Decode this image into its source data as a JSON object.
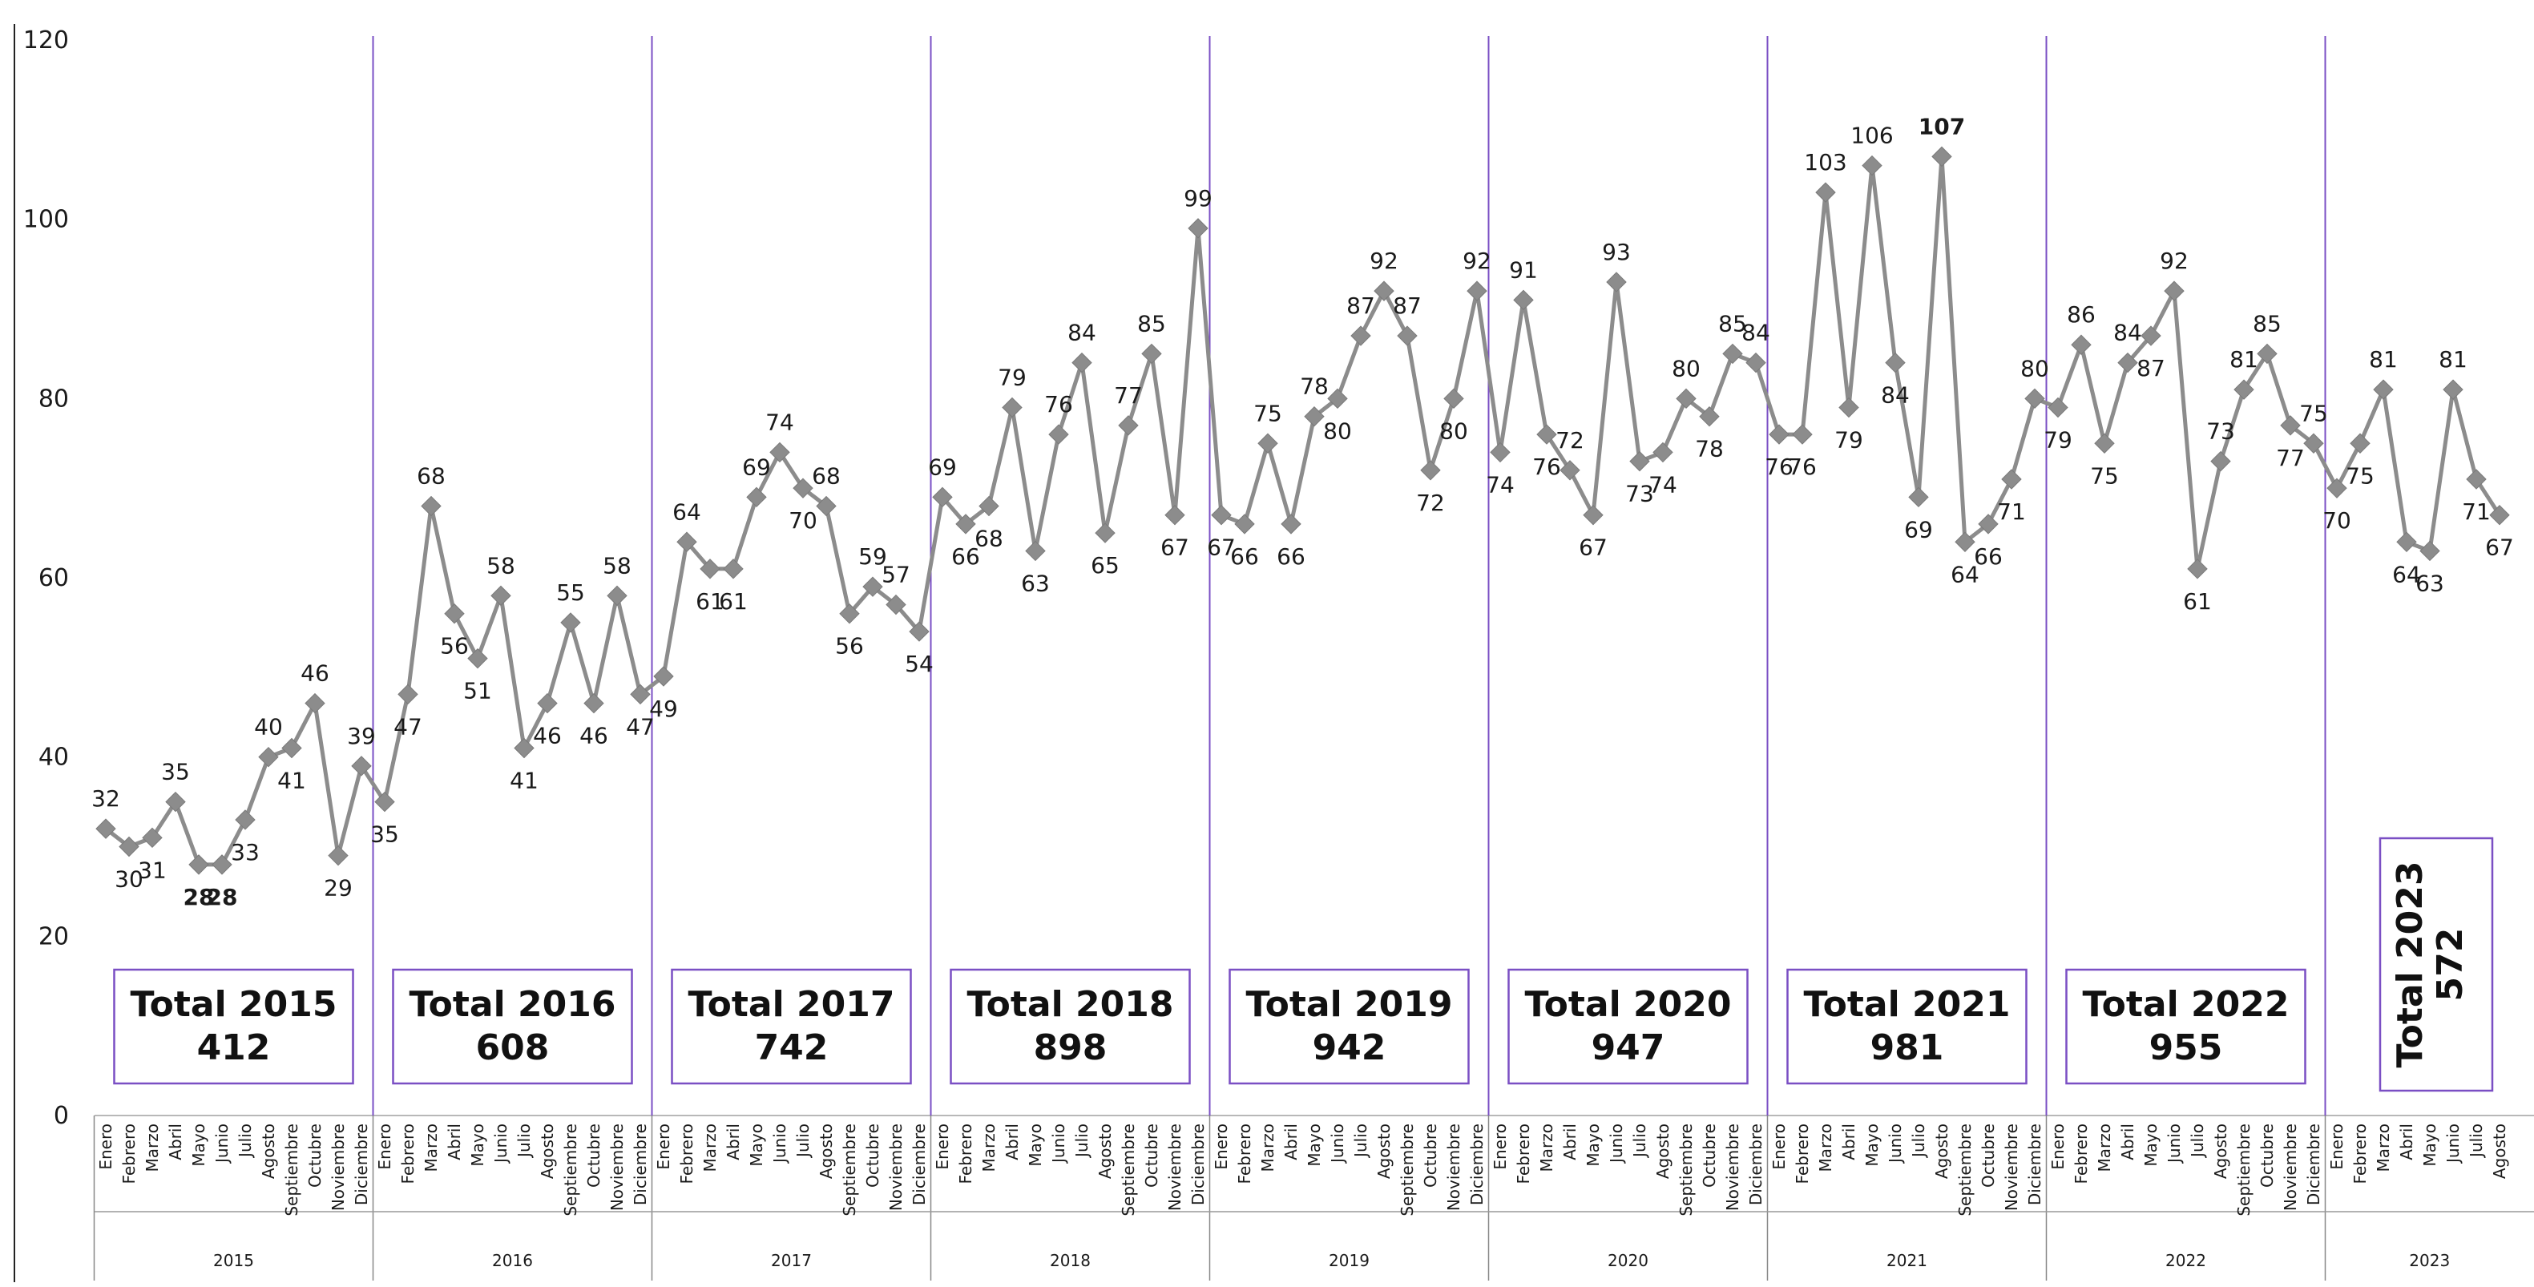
{
  "chart_data": {
    "type": "line",
    "ylim": [
      0,
      120
    ],
    "yticks": [
      "0",
      "20",
      "40",
      "60",
      "80",
      "100",
      "120"
    ],
    "grid": false,
    "line_color": "#8c8c8c",
    "marker": "diamond",
    "separator_color": "#7a4fc4",
    "min_label_color": "#21a34a",
    "max_label_color": "#e0161f",
    "months": [
      "Enero",
      "Febrero",
      "Marzo",
      "Abril",
      "Mayo",
      "Junio",
      "Julio",
      "Agosto",
      "Septiembre",
      "Octubre",
      "Noviembre",
      "Diciembre"
    ],
    "years": [
      "2015",
      "2016",
      "2017",
      "2018",
      "2019",
      "2020",
      "2021",
      "2022",
      "2023"
    ],
    "series": [
      {
        "values": [
          32,
          30,
          31,
          35,
          28,
          28,
          33,
          40,
          41,
          46,
          29,
          39,
          35,
          47,
          68,
          56,
          51,
          58,
          41,
          46,
          55,
          46,
          58,
          47,
          49,
          64,
          61,
          61,
          69,
          74,
          70,
          68,
          56,
          59,
          57,
          54,
          69,
          66,
          68,
          79,
          63,
          76,
          84,
          65,
          77,
          85,
          67,
          99,
          67,
          66,
          75,
          66,
          78,
          80,
          87,
          92,
          87,
          72,
          80,
          92,
          74,
          91,
          76,
          72,
          67,
          93,
          73,
          74,
          80,
          78,
          85,
          84,
          76,
          76,
          103,
          79,
          106,
          84,
          69,
          107,
          64,
          66,
          71,
          80,
          79,
          86,
          75,
          84,
          87,
          92,
          61,
          73,
          81,
          85,
          77,
          75,
          70,
          75,
          81,
          64,
          63,
          81,
          71,
          67
        ]
      }
    ],
    "min_label_indices": [
      4,
      5
    ],
    "max_label_indices": [
      79
    ],
    "totals": [
      {
        "line1": "Total 2015",
        "line2": "412"
      },
      {
        "line1": "Total 2016",
        "line2": "608"
      },
      {
        "line1": "Total 2017",
        "line2": "742"
      },
      {
        "line1": "Total 2018",
        "line2": "898"
      },
      {
        "line1": "Total 2019",
        "line2": "942"
      },
      {
        "line1": "Total 2020",
        "line2": "947"
      },
      {
        "line1": "Total 2021",
        "line2": "981"
      },
      {
        "line1": "Total 2022",
        "line2": "955"
      },
      {
        "line1": "Total 2023",
        "line2": "572"
      }
    ]
  }
}
